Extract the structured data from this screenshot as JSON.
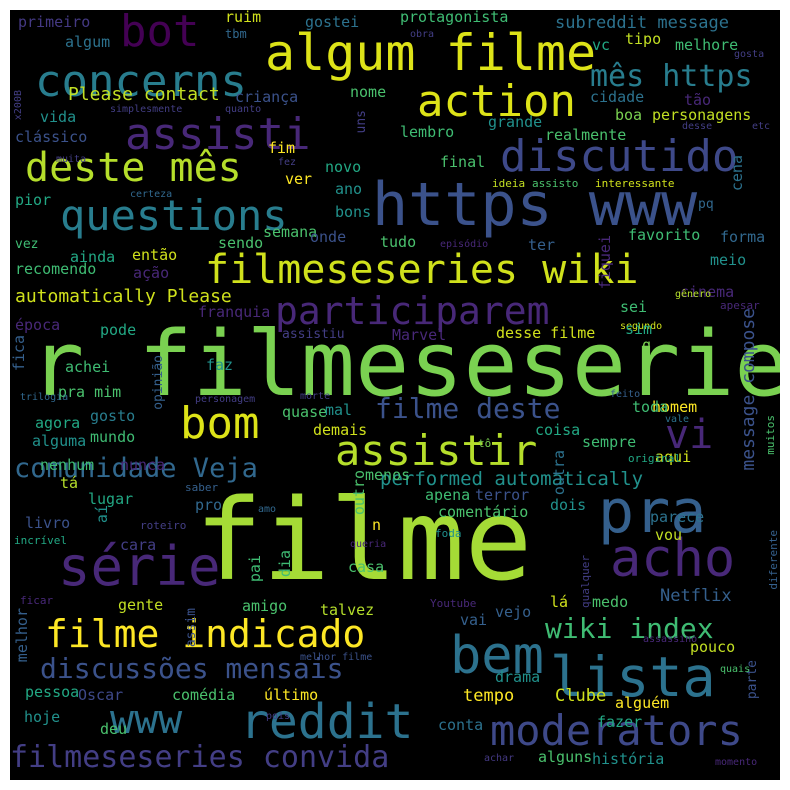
{
  "canvas": {
    "background": "#000000"
  },
  "words": [
    "filme",
    "r filmeseseries",
    "pra",
    "https www",
    "algum filme",
    "acho",
    "série",
    "lista",
    "assisti",
    "bom",
    "assistir",
    "reddit",
    "moderators",
    "bem",
    "concerns",
    "action",
    "discutido",
    "deste mês",
    "questions",
    "filmeseseries wiki",
    "participarem",
    "www",
    "filme indicado",
    "filmeseseries convida",
    "discussões mensais",
    "vi",
    "bot",
    "comunidade Veja",
    "filme deste",
    "mês https",
    "wiki index",
    "performed automatically",
    "Please contact",
    "automatically Please",
    "message compose",
    "tempo",
    "Netflix",
    "subreddit message",
    "protagonista",
    "Clube",
    "meio",
    "forma",
    "cinema",
    "história",
    "alguns",
    "pessoa",
    "drama",
    "primeiro",
    "gostei",
    "ruim",
    "tbm",
    "algum",
    "vc",
    "tipo",
    "melhore",
    "obra",
    "gosta",
    "criança",
    "nome",
    "cidade",
    "tão",
    "personagens",
    "boa",
    "realmente",
    "grande",
    "clássico",
    "vida",
    "lembro",
    "fim",
    "novo",
    "final",
    "ver",
    "ano",
    "bons",
    "cena",
    "pior",
    "certeza",
    "ideia",
    "assisto",
    "interessante",
    "pq",
    "vez",
    "sendo",
    "semana",
    "onde",
    "tudo",
    "episódio",
    "ter",
    "favorito",
    "fiquei",
    "recomendo",
    "ação",
    "então",
    "ainda",
    "gênero",
    "apesar",
    "sei",
    "época",
    "pode",
    "franquia",
    "assistiu",
    "Marvel",
    "desse filme",
    "segundo",
    "sim",
    "fica",
    "achei",
    "opinião",
    "faz",
    "pra mim",
    "q",
    "morte",
    "personagem",
    "quase",
    "mal",
    "homem",
    "feito",
    "toda",
    "trilogia",
    "gosto",
    "agora",
    "mundo",
    "alguma",
    "demais",
    "coisa",
    "sempre",
    "aqui",
    "tô",
    "vale",
    "original",
    "muitos",
    "nenhum",
    "nunca",
    "saber",
    "menos",
    "apena",
    "terror",
    "dois",
    "outro",
    "outra",
    "tá",
    "lugar",
    "livro",
    "aí",
    "pro",
    "amo",
    "comentário",
    "parece",
    "foda",
    "roteiro",
    "incrível",
    "cara",
    "dia",
    "pai",
    "n",
    "queria",
    "vou",
    "qualquer",
    "diferente",
    "casa",
    "ficar",
    "gente",
    "assim",
    "amigo",
    "talvez",
    "Youtube",
    "vejo",
    "lá",
    "medo",
    "melhor",
    "vai",
    "pouco",
    "assassino",
    "melhor filme",
    "parte",
    "quais",
    "Oscar",
    "comédia",
    "último",
    "alguém",
    "hoje",
    "pois",
    "deu",
    "conta",
    "fazer",
    "achar",
    "momento",
    "simplesmente",
    "quanto",
    "x200B",
    "uns",
    "etc",
    "desse",
    "muita",
    "fez"
  ]
}
